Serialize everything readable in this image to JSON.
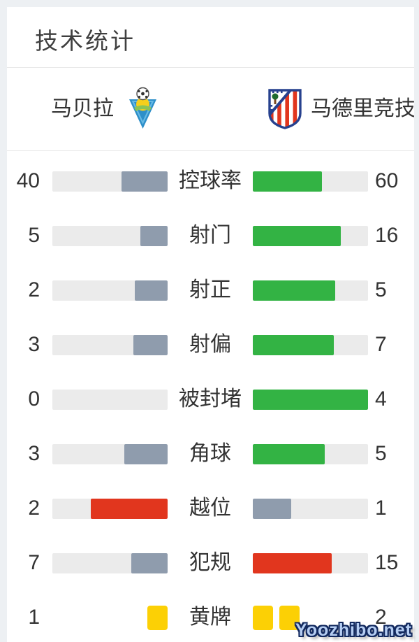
{
  "header": {
    "title": "技术统计"
  },
  "teams": {
    "home": {
      "name": "马贝拉"
    },
    "away": {
      "name": "马德里竞技"
    }
  },
  "colors": {
    "green": "#33b344",
    "slate": "#8f9cad",
    "red": "#e1361e",
    "yellow": "#fcd005",
    "track": "#ebebeb",
    "divider": "#e9e9e9",
    "background": "#edf0f3",
    "text": "#333333",
    "watermark_fill": "#b5cdf2",
    "watermark_outline": "#12295e"
  },
  "stats": {
    "rows": [
      {
        "label": "控球率",
        "type": "bars",
        "left": {
          "value": 40,
          "color": "slate"
        },
        "right": {
          "value": 60,
          "color": "green"
        }
      },
      {
        "label": "射门",
        "type": "bars",
        "left": {
          "value": 5,
          "color": "slate"
        },
        "right": {
          "value": 16,
          "color": "green"
        }
      },
      {
        "label": "射正",
        "type": "bars",
        "left": {
          "value": 2,
          "color": "slate"
        },
        "right": {
          "value": 5,
          "color": "green"
        }
      },
      {
        "label": "射偏",
        "type": "bars",
        "left": {
          "value": 3,
          "color": "slate"
        },
        "right": {
          "value": 7,
          "color": "green"
        }
      },
      {
        "label": "被封堵",
        "type": "bars",
        "left": {
          "value": 0,
          "color": "slate"
        },
        "right": {
          "value": 4,
          "color": "green"
        }
      },
      {
        "label": "角球",
        "type": "bars",
        "left": {
          "value": 3,
          "color": "slate"
        },
        "right": {
          "value": 5,
          "color": "green"
        }
      },
      {
        "label": "越位",
        "type": "bars",
        "left": {
          "value": 2,
          "color": "red"
        },
        "right": {
          "value": 1,
          "color": "slate"
        }
      },
      {
        "label": "犯规",
        "type": "bars",
        "left": {
          "value": 7,
          "color": "slate"
        },
        "right": {
          "value": 15,
          "color": "red"
        }
      },
      {
        "label": "黄牌",
        "type": "cards",
        "left": {
          "value": 1,
          "color": "yellow"
        },
        "right": {
          "value": 2,
          "color": "yellow"
        }
      }
    ]
  },
  "watermark": {
    "text": "Yoozhibo.net"
  },
  "chart_data": {
    "type": "bar",
    "title": "技术统计",
    "layout": "mirrored-horizontal-comparison",
    "categories": [
      "控球率",
      "射门",
      "射正",
      "射偏",
      "被封堵",
      "角球",
      "越位",
      "犯规",
      "黄牌"
    ],
    "series": [
      {
        "name": "马贝拉",
        "values": [
          40,
          5,
          2,
          3,
          0,
          3,
          2,
          7,
          1
        ]
      },
      {
        "name": "马德里竞技",
        "values": [
          60,
          16,
          5,
          7,
          4,
          5,
          1,
          15,
          2
        ]
      }
    ],
    "bar_scaling": "value / (home+away) of each category",
    "notes": "黄牌 row rendered as yellow card icons instead of bars; 越位/犯规 leader bars red, other leader bars green, trailing bars slate gray"
  }
}
